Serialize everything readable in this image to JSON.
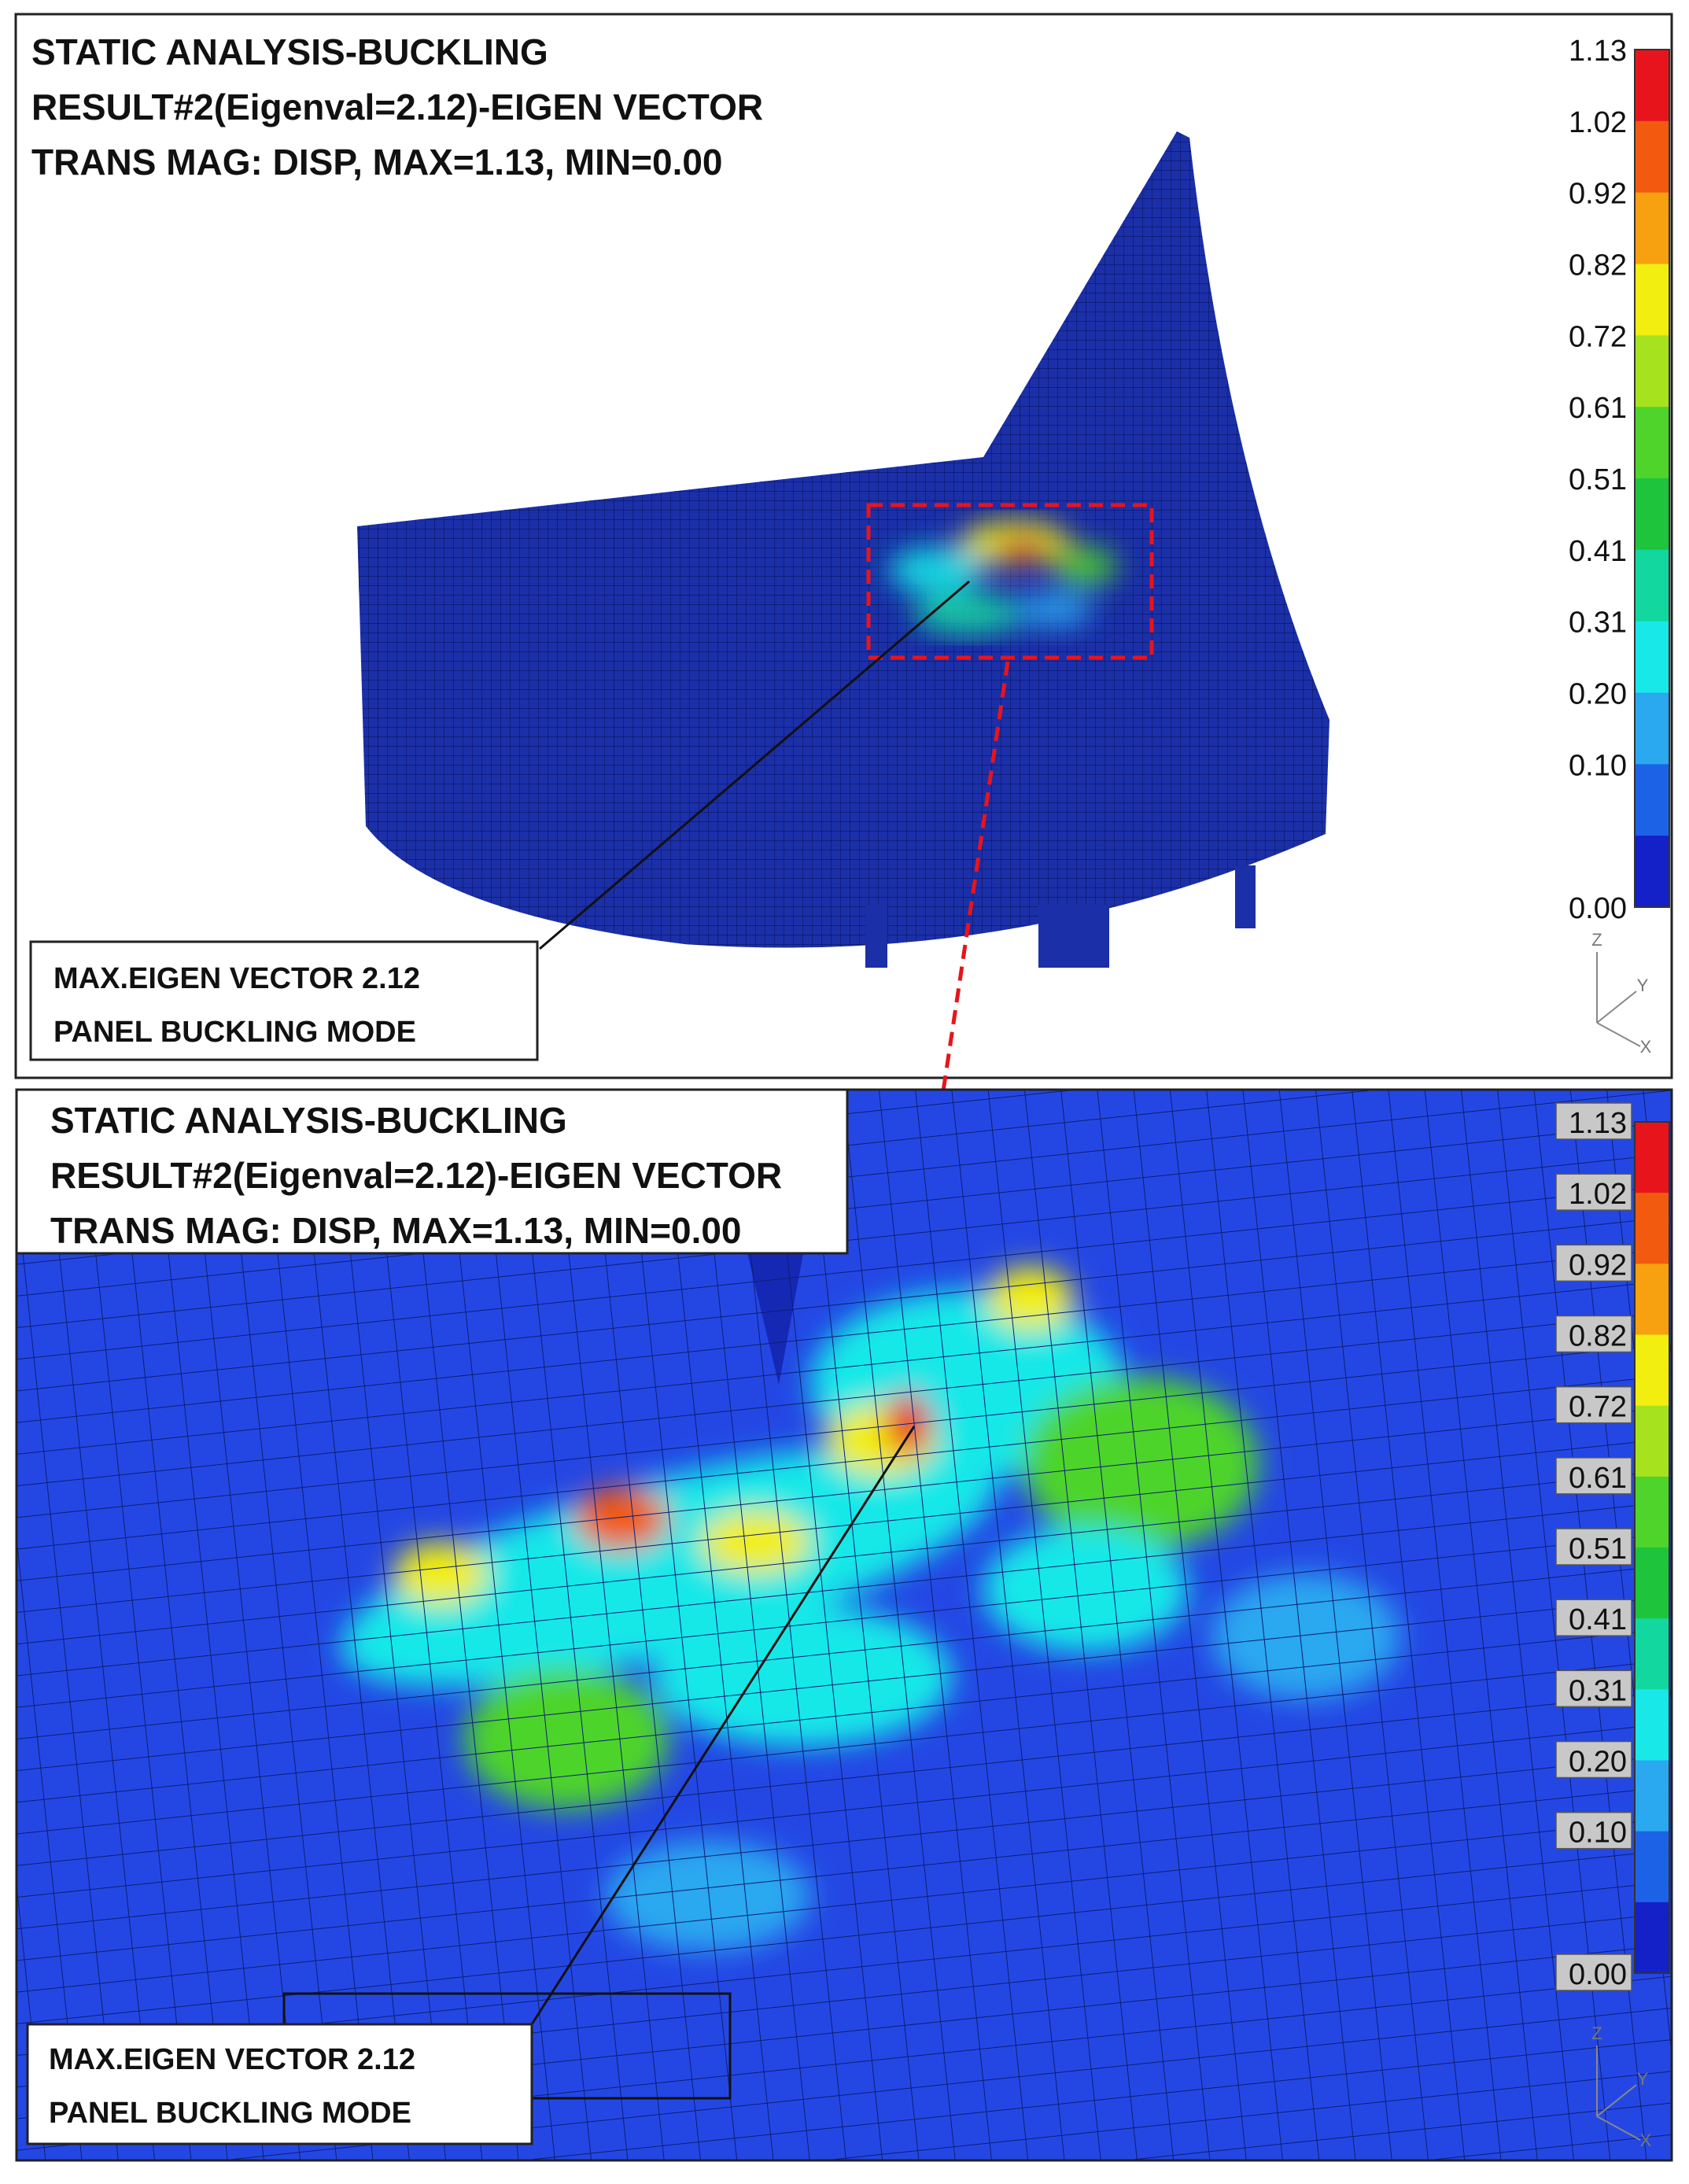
{
  "top_panel": {
    "header": [
      "STATIC ANALYSIS-BUCKLING",
      "RESULT#2(Eigenval=2.12)-EIGEN VECTOR",
      "TRANS MAG: DISP, MAX=1.13, MIN=0.00"
    ],
    "callout": [
      "MAX.EIGEN VECTOR 2.12",
      "PANEL BUCKLING MODE"
    ],
    "axes": [
      "Z",
      "Y",
      "X"
    ]
  },
  "bottom_panel": {
    "header": [
      "STATIC ANALYSIS-BUCKLING",
      "RESULT#2(Eigenval=2.12)-EIGEN VECTOR",
      "TRANS MAG: DISP, MAX=1.13, MIN=0.00"
    ],
    "callout": [
      "MAX.EIGEN VECTOR 2.12",
      "PANEL BUCKLING MODE"
    ],
    "axes": [
      "Z",
      "Y",
      "X"
    ]
  },
  "legend": {
    "labels": [
      "1.13",
      "1.02",
      "0.92",
      "0.82",
      "0.72",
      "0.61",
      "0.51",
      "0.41",
      "0.31",
      "0.20",
      "0.10",
      "0.00"
    ],
    "colors": [
      "#e8141c",
      "#f25a10",
      "#f7a010",
      "#f2ee10",
      "#a6e31e",
      "#4ed42a",
      "#1ec43c",
      "#12d8a0",
      "#18e8e8",
      "#2aa8f0",
      "#1c62e6",
      "#1420c8"
    ]
  }
}
